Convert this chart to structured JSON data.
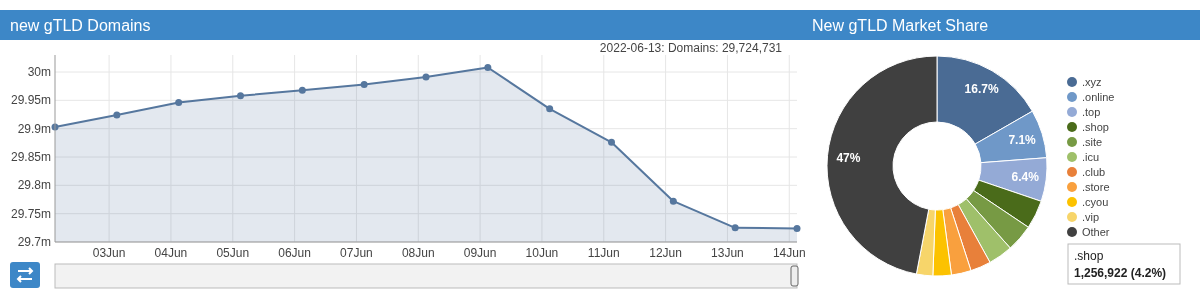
{
  "chart_data": [
    {
      "type": "area",
      "title": "new gTLD Domains",
      "x": [
        "2022-06-02T03:00",
        "2022-06-03T03:00",
        "2022-06-04T03:00",
        "2022-06-05T03:00",
        "2022-06-06T03:00",
        "2022-06-07T03:00",
        "2022-06-08T03:00",
        "2022-06-09T03:00",
        "2022-06-10T03:00",
        "2022-06-11T03:00",
        "2022-06-12T03:00",
        "2022-06-13T03:00",
        "2022-06-14T03:00"
      ],
      "series": [
        {
          "color": "#56779e",
          "values": [
            29.903,
            29.924,
            29.946,
            29.958,
            29.968,
            29.978,
            29.991,
            30.008,
            29.935,
            29.876,
            29.772,
            29.725,
            29.724
          ]
        }
      ],
      "xlim": [
        "2022-06-02T03:00",
        "2022-06-14T03:00"
      ],
      "xticks": [
        {
          "value": "2022-06-03",
          "label": "03Jun"
        },
        {
          "value": "2022-06-04",
          "label": "04Jun"
        },
        {
          "value": "2022-06-05",
          "label": "05Jun"
        },
        {
          "value": "2022-06-06",
          "label": "06Jun"
        },
        {
          "value": "2022-06-07",
          "label": "07Jun"
        },
        {
          "value": "2022-06-08",
          "label": "08Jun"
        },
        {
          "value": "2022-06-09",
          "label": "09Jun"
        },
        {
          "value": "2022-06-10",
          "label": "10Jun"
        },
        {
          "value": "2022-06-11",
          "label": "11Jun"
        },
        {
          "value": "2022-06-12",
          "label": "12Jun"
        },
        {
          "value": "2022-06-13",
          "label": "13Jun"
        },
        {
          "value": "2022-06-14",
          "label": "14Jun"
        }
      ],
      "ylim": [
        29.7,
        30.03
      ],
      "yticks": [
        {
          "value": 29.7,
          "label": "29.7m"
        },
        {
          "value": 29.75,
          "label": "29.75m"
        },
        {
          "value": 29.8,
          "label": "29.8m"
        },
        {
          "value": 29.85,
          "label": "29.85m"
        },
        {
          "value": 29.9,
          "label": "29.9m"
        },
        {
          "value": 29.95,
          "label": "29.95m"
        },
        {
          "value": 30,
          "label": "30m"
        }
      ],
      "grid": true,
      "marker": "circle",
      "annotations": [
        "2022-06-13: Domains: 29,724,731"
      ]
    },
    {
      "type": "donut",
      "title": "New gTLD Market Share",
      "categories": [
        ".xyz",
        ".online",
        ".top",
        ".shop",
        ".site",
        ".icu",
        ".club",
        ".store",
        ".cyou",
        ".vip",
        "Other"
      ],
      "values": [
        16.7,
        7.1,
        6.4,
        4.2,
        4.0,
        3.6,
        3.0,
        2.9,
        2.7,
        2.4,
        47
      ],
      "colors": [
        "#4a6b94",
        "#6f98c8",
        "#94aad6",
        "#4a6b1a",
        "#779a44",
        "#9fc06a",
        "#e8803a",
        "#f9a03e",
        "#fcc200",
        "#f7d56a",
        "#404040"
      ],
      "value_labels": [
        "16.7%",
        "7.1%",
        "6.4%",
        null,
        null,
        null,
        null,
        null,
        null,
        null,
        "47%"
      ],
      "legend": "right",
      "annotations": [
        ".shop",
        "1,256,922 (4.2%)"
      ]
    }
  ]
}
